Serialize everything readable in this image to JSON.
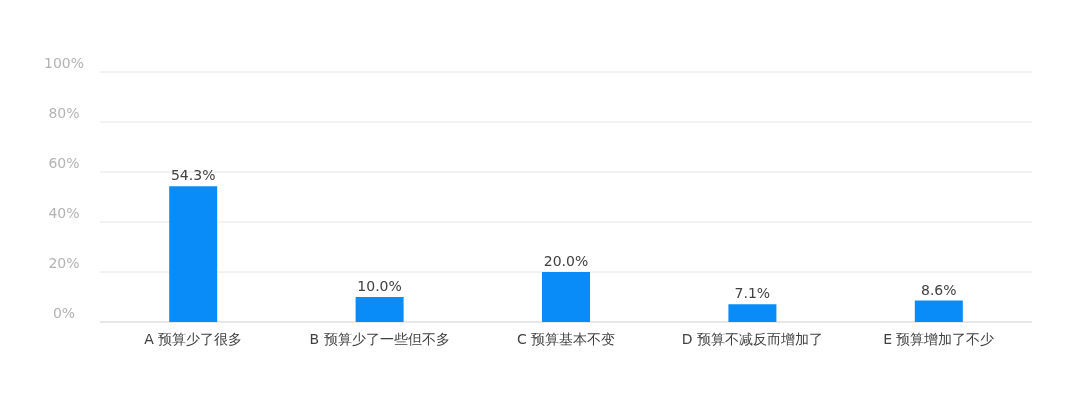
{
  "chart_data": {
    "type": "bar",
    "categories": [
      "A 预算少了很多",
      "B 预算少了一些但不多",
      "C 预算基本不变",
      "D 预算不减反而增加了",
      "E 预算增加了不少"
    ],
    "values": [
      54.3,
      10.0,
      20.0,
      7.1,
      8.6
    ],
    "value_labels": [
      "54.3%",
      "10.0%",
      "20.0%",
      "7.1%",
      "8.6%"
    ],
    "color": "#0a8cf8",
    "ylim": [
      0,
      100
    ],
    "yticks": [
      {
        "value": 0,
        "label": "0%"
      },
      {
        "value": 20,
        "label": "20%"
      },
      {
        "value": 40,
        "label": "40%"
      },
      {
        "value": 60,
        "label": "60%"
      },
      {
        "value": 80,
        "label": "80%"
      },
      {
        "value": 100,
        "label": "100%"
      }
    ],
    "grid": "y"
  }
}
